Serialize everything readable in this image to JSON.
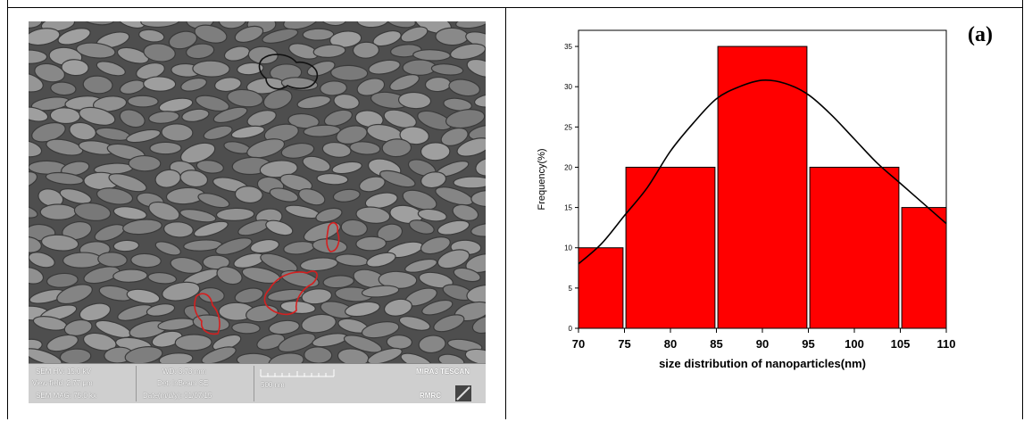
{
  "panel_label": "(a)",
  "sem_panel": {
    "info": {
      "hv": "SEM HV: 15.0 kV",
      "view_field": "View field: 2.77 μm",
      "mag": "SEM MAG: 75.0 kx",
      "wd": "WD: 3.73 mm",
      "det": "Det: InBeam SE",
      "date": "Date(m/d/y): 01/07/15",
      "scale": "500 nm",
      "instrument": "MIRA3 TESCAN",
      "lab": "RMRC"
    },
    "colors": {
      "background": "#5f5f5f",
      "outline_red": "#d42020",
      "outline_black": "#111111"
    }
  },
  "chart_data": {
    "type": "bar",
    "xlabel": "size distribution of nanoparticles(nm)",
    "ylabel": "Frequency(%)",
    "bins": [
      {
        "start": 70,
        "end": 75,
        "value": 10
      },
      {
        "start": 75,
        "end": 85,
        "value": 20
      },
      {
        "start": 85,
        "end": 95,
        "value": 35
      },
      {
        "start": 95,
        "end": 105,
        "value": 20
      },
      {
        "start": 105,
        "end": 110,
        "value": 15
      }
    ],
    "fit_curve": {
      "type": "gaussian",
      "x": [
        70,
        72.5,
        75,
        77.5,
        80,
        82.5,
        85,
        87.5,
        90,
        92.5,
        95,
        97.5,
        100,
        102.5,
        105,
        107.5,
        110
      ],
      "y": [
        8,
        10.5,
        14,
        17.5,
        22,
        25.5,
        28.5,
        30,
        30.8,
        30.4,
        29,
        26.5,
        23.5,
        20.5,
        18,
        15.5,
        13
      ]
    },
    "xlim": [
      70,
      110
    ],
    "ylim": [
      0,
      37
    ],
    "xticks": [
      70,
      75,
      80,
      85,
      90,
      95,
      100,
      105,
      110
    ],
    "yticks": [
      0,
      5,
      10,
      15,
      20,
      25,
      30,
      35
    ],
    "bar_color": "#ff0000",
    "bar_edge_color": "#000000",
    "curve_color": "#000000",
    "grid": false
  }
}
